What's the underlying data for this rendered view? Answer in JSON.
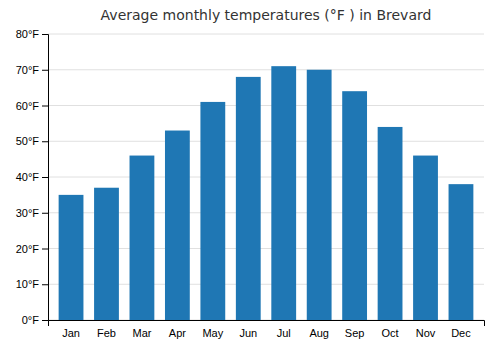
{
  "chart_data": {
    "type": "bar",
    "title": "Average monthly temperatures (°F ) in Brevard",
    "categories": [
      "Jan",
      "Feb",
      "Mar",
      "Apr",
      "May",
      "Jun",
      "Jul",
      "Aug",
      "Sep",
      "Oct",
      "Nov",
      "Dec"
    ],
    "values": [
      35,
      37,
      46,
      53,
      61,
      68,
      71,
      70,
      64,
      54,
      46,
      38
    ],
    "ylim": [
      0,
      80
    ],
    "yticks": [
      {
        "value": 0,
        "label": "0°F"
      },
      {
        "value": 10,
        "label": "10°F"
      },
      {
        "value": 20,
        "label": "20°F"
      },
      {
        "value": 30,
        "label": "30°F"
      },
      {
        "value": 40,
        "label": "40°F"
      },
      {
        "value": 50,
        "label": "50°F"
      },
      {
        "value": 60,
        "label": "60°F"
      },
      {
        "value": 70,
        "label": "70°F"
      },
      {
        "value": 80,
        "label": "80°F"
      }
    ],
    "grid": true
  }
}
